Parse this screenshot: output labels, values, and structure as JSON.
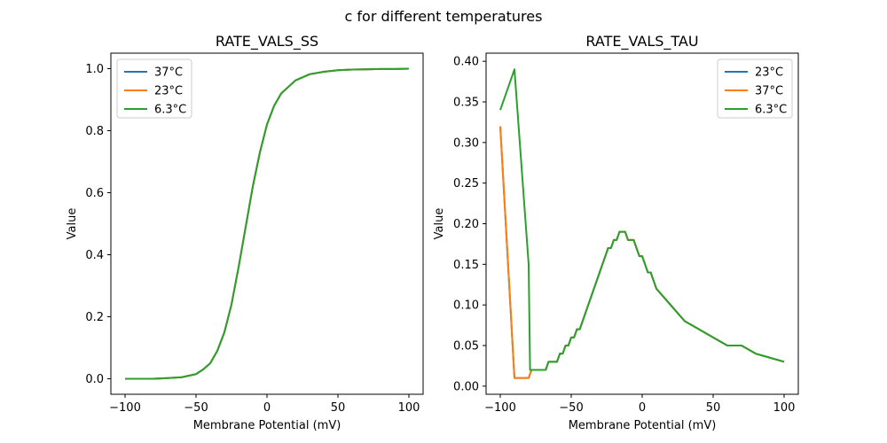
{
  "figure": {
    "suptitle": "c for different temperatures"
  },
  "chart_data": [
    {
      "type": "line",
      "title": "RATE_VALS_SS",
      "xlabel": "Membrane Potential (mV)",
      "ylabel": "Value",
      "xlim": [
        -110,
        110
      ],
      "ylim": [
        -0.05,
        1.05
      ],
      "xticks": [
        -100,
        -50,
        0,
        50,
        100
      ],
      "yticks": [
        0.0,
        0.2,
        0.4,
        0.6,
        0.8,
        1.0
      ],
      "xtick_labels": [
        "−100",
        "−50",
        "0",
        "50",
        "100"
      ],
      "ytick_labels": [
        "0.0",
        "0.2",
        "0.4",
        "0.6",
        "0.8",
        "1.0"
      ],
      "grid": false,
      "legend_position": "top-left",
      "series": [
        {
          "name": "37°C",
          "color": "#1f77b4",
          "x": [
            -100,
            -90,
            -80,
            -70,
            -60,
            -50,
            -45,
            -40,
            -35,
            -30,
            -25,
            -20,
            -15,
            -10,
            -5,
            0,
            5,
            10,
            20,
            30,
            40,
            50,
            60,
            70,
            80,
            90,
            100
          ],
          "y": [
            0.0,
            0.0,
            0.0,
            0.002,
            0.005,
            0.015,
            0.03,
            0.05,
            0.09,
            0.15,
            0.24,
            0.36,
            0.49,
            0.62,
            0.73,
            0.82,
            0.88,
            0.92,
            0.962,
            0.982,
            0.99,
            0.995,
            0.997,
            0.998,
            0.999,
            0.999,
            1.0
          ]
        },
        {
          "name": "23°C",
          "color": "#ff7f0e",
          "x": [
            -100,
            -90,
            -80,
            -70,
            -60,
            -50,
            -45,
            -40,
            -35,
            -30,
            -25,
            -20,
            -15,
            -10,
            -5,
            0,
            5,
            10,
            20,
            30,
            40,
            50,
            60,
            70,
            80,
            90,
            100
          ],
          "y": [
            0.0,
            0.0,
            0.0,
            0.002,
            0.005,
            0.015,
            0.03,
            0.05,
            0.09,
            0.15,
            0.24,
            0.36,
            0.49,
            0.62,
            0.73,
            0.82,
            0.88,
            0.92,
            0.962,
            0.982,
            0.99,
            0.995,
            0.997,
            0.998,
            0.999,
            0.999,
            1.0
          ]
        },
        {
          "name": "6.3°C",
          "color": "#2ca02c",
          "x": [
            -100,
            -90,
            -80,
            -70,
            -60,
            -50,
            -45,
            -40,
            -35,
            -30,
            -25,
            -20,
            -15,
            -10,
            -5,
            0,
            5,
            10,
            20,
            30,
            40,
            50,
            60,
            70,
            80,
            90,
            100
          ],
          "y": [
            0.0,
            0.0,
            0.0,
            0.002,
            0.005,
            0.015,
            0.03,
            0.05,
            0.09,
            0.15,
            0.24,
            0.36,
            0.49,
            0.62,
            0.73,
            0.82,
            0.88,
            0.92,
            0.962,
            0.982,
            0.99,
            0.995,
            0.997,
            0.998,
            0.999,
            0.999,
            1.0
          ]
        }
      ]
    },
    {
      "type": "line",
      "title": "RATE_VALS_TAU",
      "xlabel": "Membrane Potential (mV)",
      "ylabel": "Value",
      "xlim": [
        -110,
        110
      ],
      "ylim": [
        -0.01,
        0.41
      ],
      "xticks": [
        -100,
        -50,
        0,
        50,
        100
      ],
      "yticks": [
        0.0,
        0.05,
        0.1,
        0.15,
        0.2,
        0.25,
        0.3,
        0.35,
        0.4
      ],
      "xtick_labels": [
        "−100",
        "−50",
        "0",
        "50",
        "100"
      ],
      "ytick_labels": [
        "0.00",
        "0.05",
        "0.10",
        "0.15",
        "0.20",
        "0.25",
        "0.30",
        "0.35",
        "0.40"
      ],
      "grid": false,
      "legend_position": "top-right",
      "series": [
        {
          "name": "23°C",
          "color": "#1f77b4",
          "x": [
            -100,
            -90,
            -88,
            -86,
            -84,
            -82,
            -80,
            -78,
            -70,
            -68,
            -66,
            -62,
            -60,
            -58,
            -56,
            -54,
            -52,
            -50,
            -48,
            -46,
            -44,
            -42,
            -40,
            -38,
            -36,
            -34,
            -32,
            -30,
            -28,
            -26,
            -24,
            -22,
            -20,
            -18,
            -16,
            -14,
            -12,
            -10,
            -8,
            -6,
            -4,
            -2,
            0,
            2,
            4,
            6,
            8,
            10,
            20,
            30,
            40,
            50,
            60,
            70,
            80,
            90,
            100
          ],
          "y": [
            0.32,
            0.01,
            0.01,
            0.01,
            0.01,
            0.01,
            0.01,
            0.02,
            0.02,
            0.02,
            0.03,
            0.03,
            0.03,
            0.04,
            0.04,
            0.05,
            0.05,
            0.06,
            0.06,
            0.07,
            0.07,
            0.08,
            0.09,
            0.1,
            0.11,
            0.12,
            0.13,
            0.14,
            0.15,
            0.16,
            0.17,
            0.17,
            0.18,
            0.18,
            0.19,
            0.19,
            0.19,
            0.18,
            0.18,
            0.18,
            0.17,
            0.16,
            0.16,
            0.15,
            0.14,
            0.14,
            0.13,
            0.12,
            0.1,
            0.08,
            0.07,
            0.06,
            0.05,
            0.05,
            0.04,
            0.035,
            0.03
          ]
        },
        {
          "name": "37°C",
          "color": "#ff7f0e",
          "x": [
            -100,
            -90,
            -88,
            -86,
            -84,
            -82,
            -80,
            -78,
            -70,
            -68,
            -66,
            -62,
            -60,
            -58,
            -56,
            -54,
            -52,
            -50,
            -48,
            -46,
            -44,
            -42,
            -40,
            -38,
            -36,
            -34,
            -32,
            -30,
            -28,
            -26,
            -24,
            -22,
            -20,
            -18,
            -16,
            -14,
            -12,
            -10,
            -8,
            -6,
            -4,
            -2,
            0,
            2,
            4,
            6,
            8,
            10,
            20,
            30,
            40,
            50,
            60,
            70,
            80,
            90,
            100
          ],
          "y": [
            0.32,
            0.01,
            0.01,
            0.01,
            0.01,
            0.01,
            0.01,
            0.02,
            0.02,
            0.02,
            0.03,
            0.03,
            0.03,
            0.04,
            0.04,
            0.05,
            0.05,
            0.06,
            0.06,
            0.07,
            0.07,
            0.08,
            0.09,
            0.1,
            0.11,
            0.12,
            0.13,
            0.14,
            0.15,
            0.16,
            0.17,
            0.17,
            0.18,
            0.18,
            0.19,
            0.19,
            0.19,
            0.18,
            0.18,
            0.18,
            0.17,
            0.16,
            0.16,
            0.15,
            0.14,
            0.14,
            0.13,
            0.12,
            0.1,
            0.08,
            0.07,
            0.06,
            0.05,
            0.05,
            0.04,
            0.035,
            0.03
          ]
        },
        {
          "name": "6.3°C",
          "color": "#2ca02c",
          "x": [
            -100,
            -90,
            -80,
            -79,
            -78,
            -70,
            -68,
            -66,
            -62,
            -60,
            -58,
            -56,
            -54,
            -52,
            -50,
            -48,
            -46,
            -44,
            -42,
            -40,
            -38,
            -36,
            -34,
            -32,
            -30,
            -28,
            -26,
            -24,
            -22,
            -20,
            -18,
            -16,
            -14,
            -12,
            -10,
            -8,
            -6,
            -4,
            -2,
            0,
            2,
            4,
            6,
            8,
            10,
            20,
            30,
            40,
            50,
            60,
            70,
            80,
            90,
            100
          ],
          "y": [
            0.34,
            0.39,
            0.15,
            0.02,
            0.02,
            0.02,
            0.02,
            0.03,
            0.03,
            0.03,
            0.04,
            0.04,
            0.05,
            0.05,
            0.06,
            0.06,
            0.07,
            0.07,
            0.08,
            0.09,
            0.1,
            0.11,
            0.12,
            0.13,
            0.14,
            0.15,
            0.16,
            0.17,
            0.17,
            0.18,
            0.18,
            0.19,
            0.19,
            0.19,
            0.18,
            0.18,
            0.18,
            0.17,
            0.16,
            0.16,
            0.15,
            0.14,
            0.14,
            0.13,
            0.12,
            0.1,
            0.08,
            0.07,
            0.06,
            0.05,
            0.05,
            0.04,
            0.035,
            0.03
          ]
        }
      ]
    }
  ]
}
